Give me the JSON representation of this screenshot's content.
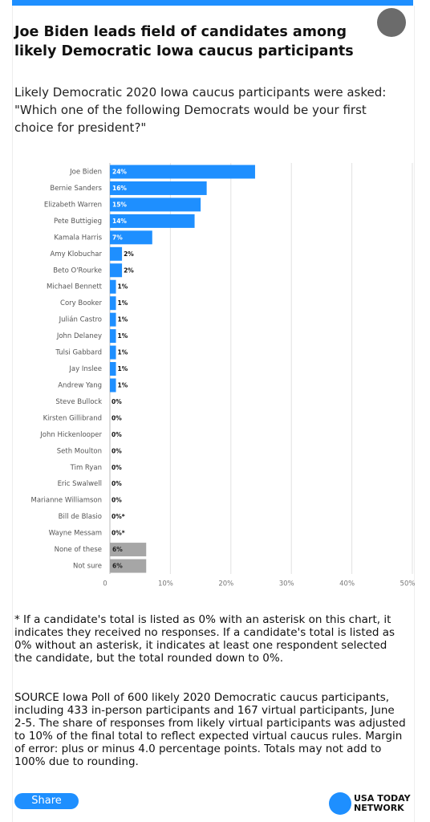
{
  "header": {
    "title": "Joe Biden leads field of candidates among likely Democratic Iowa caucus participants"
  },
  "chart_data": {
    "type": "bar",
    "orientation": "horizontal",
    "subtitle": "Likely Democratic 2020 Iowa caucus participants were asked: \"Which one of the following Democrats would be your first choice for president?\"",
    "categories": [
      "Joe Biden",
      "Bernie Sanders",
      "Elizabeth Warren",
      "Pete Buttigieg",
      "Kamala Harris",
      "Amy Klobuchar",
      "Beto O'Rourke",
      "Michael Bennett",
      "Cory Booker",
      "Julián Castro",
      "John Delaney",
      "Tulsi Gabbard",
      "Jay Inslee",
      "Andrew Yang",
      "Steve Bullock",
      "Kirsten Gillibrand",
      "John Hickenlooper",
      "Seth Moulton",
      "Tim Ryan",
      "Eric Swalwell",
      "Marianne Williamson",
      "Bill de Blasio",
      "Wayne Messam",
      "None of these",
      "Not sure"
    ],
    "values": [
      24,
      16,
      15,
      14,
      7,
      2,
      2,
      1,
      1,
      1,
      1,
      1,
      1,
      1,
      0,
      0,
      0,
      0,
      0,
      0,
      0,
      0,
      0,
      6,
      6
    ],
    "value_labels": [
      "24%",
      "16%",
      "15%",
      "14%",
      "7%",
      "2%",
      "2%",
      "1%",
      "1%",
      "1%",
      "1%",
      "1%",
      "1%",
      "1%",
      "0%",
      "0%",
      "0%",
      "0%",
      "0%",
      "0%",
      "0%",
      "0%*",
      "0%*",
      "6%",
      "6%"
    ],
    "colors": [
      "#1e8fff",
      "#1e8fff",
      "#1e8fff",
      "#1e8fff",
      "#1e8fff",
      "#1e8fff",
      "#1e8fff",
      "#1e8fff",
      "#1e8fff",
      "#1e8fff",
      "#1e8fff",
      "#1e8fff",
      "#1e8fff",
      "#1e8fff",
      "#1e8fff",
      "#1e8fff",
      "#1e8fff",
      "#1e8fff",
      "#1e8fff",
      "#1e8fff",
      "#1e8fff",
      "#1e8fff",
      "#1e8fff",
      "#a6a6a6",
      "#a6a6a6"
    ],
    "xlim": [
      0,
      50
    ],
    "xticks": [
      0,
      {
        "value": 10,
        "label": "10%"
      },
      {
        "value": 20,
        "label": "20%"
      },
      {
        "value": 30,
        "label": "30%"
      },
      {
        "value": 40,
        "label": "40%"
      },
      {
        "value": 50,
        "label": "50%"
      }
    ],
    "grid": true
  },
  "notes": [
    "* If a candidate's total is listed as 0% with an asterisk on this chart, it indicates they received no responses. If a candidate's total is listed as 0% without an asterisk, it indicates at least one respondent selected the candidate, but the total rounded down to 0%.",
    "SOURCE Iowa Poll of 600 likely 2020 Democratic caucus participants, including 433 in-person participants and 167 virtual participants, June 2-5. The share of responses from likely virtual participants was adjusted to 10% of the final total to reflect expected virtual caucus rules. Margin of error: plus or minus 4.0 percentage points. Totals may not add to 100% due to rounding."
  ],
  "footer": {
    "share": "Share",
    "logo_line1": "USA TODAY",
    "logo_line2": "NETWORK"
  }
}
